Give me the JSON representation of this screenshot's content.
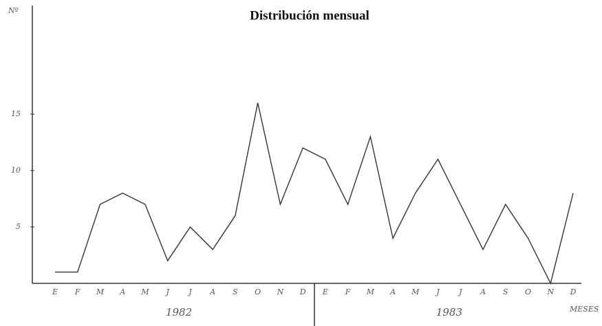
{
  "chart_data": {
    "type": "line",
    "title": "Distribución mensual",
    "ylabel": "Nº",
    "xlabel": "MESES",
    "categories": [
      "E",
      "F",
      "M",
      "A",
      "M",
      "J",
      "J",
      "A",
      "S",
      "O",
      "N",
      "D",
      "E",
      "F",
      "M",
      "A",
      "M",
      "J",
      "J",
      "A",
      "S",
      "O",
      "N",
      "D"
    ],
    "groups": [
      "1982",
      "1983"
    ],
    "values": [
      1,
      1,
      7,
      8,
      7,
      2,
      5,
      3,
      6,
      16,
      7,
      12,
      11,
      7,
      13,
      4,
      8,
      11,
      7,
      3,
      7,
      4,
      0,
      8
    ],
    "color": "#333333",
    "ylim": [
      0,
      24.5
    ],
    "yticks": [
      5,
      10,
      15
    ],
    "grid": false
  }
}
